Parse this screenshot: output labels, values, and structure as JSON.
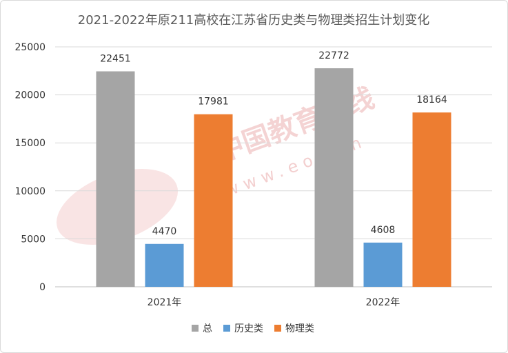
{
  "chart_data": {
    "type": "bar",
    "title": "2021-2022年原211高校在江苏省历史类与物理类招生计划变化",
    "categories": [
      "2021年",
      "2022年"
    ],
    "series": [
      {
        "name": "总",
        "values": [
          22451,
          22772
        ],
        "color": "#a5a5a5"
      },
      {
        "name": "历史类",
        "values": [
          4470,
          4608
        ],
        "color": "#5b9bd5"
      },
      {
        "name": "物理类",
        "values": [
          17981,
          18164
        ],
        "color": "#ed7d31"
      }
    ],
    "ylim": [
      0,
      25000
    ],
    "yticks": [
      0,
      5000,
      10000,
      15000,
      20000,
      25000
    ],
    "grid": true,
    "legend": "bottom",
    "data_labels": true
  },
  "watermark": {
    "brand": "中国教育在线",
    "url": "www.eol.cn",
    "logo": "eol"
  }
}
